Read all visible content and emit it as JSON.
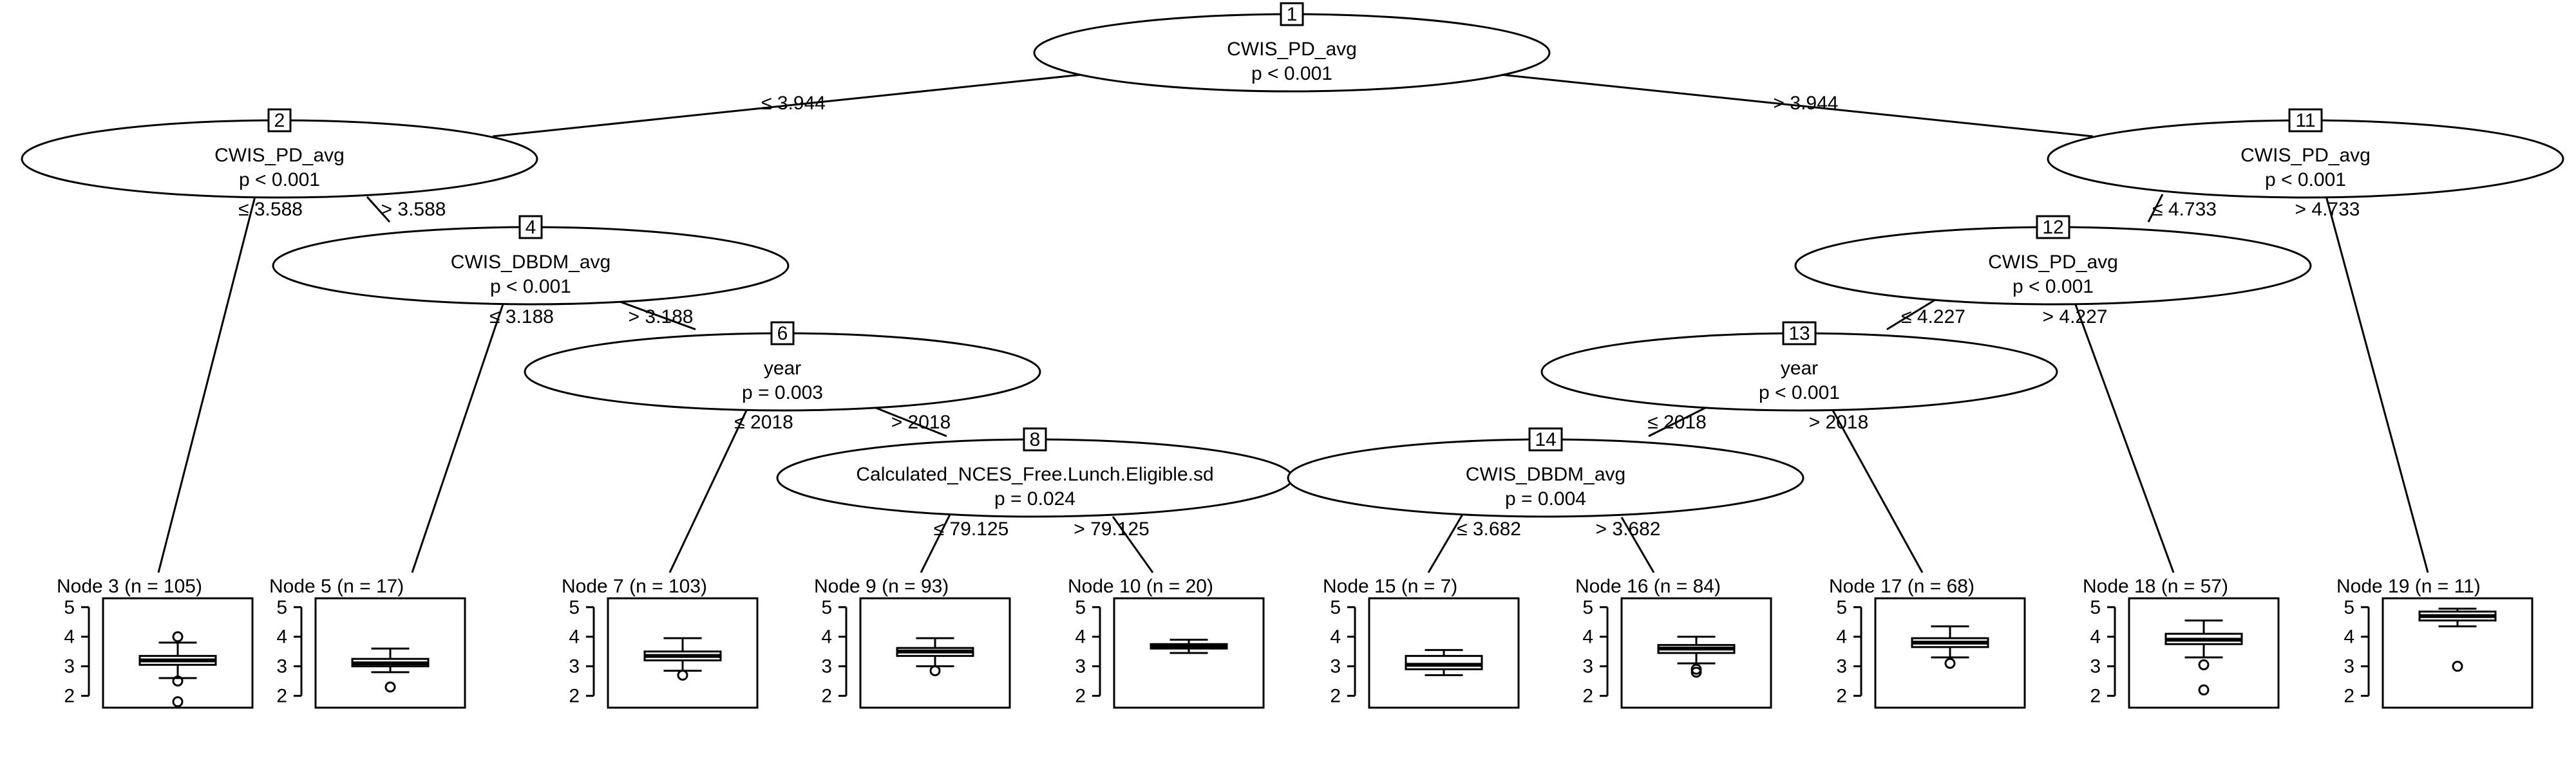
{
  "inner_nodes": [
    {
      "id": "1",
      "variable": "CWIS_PD_avg",
      "p": "p < 0.001"
    },
    {
      "id": "2",
      "variable": "CWIS_PD_avg",
      "p": "p < 0.001"
    },
    {
      "id": "4",
      "variable": "CWIS_DBDM_avg",
      "p": "p < 0.001"
    },
    {
      "id": "6",
      "variable": "year",
      "p": "p = 0.003"
    },
    {
      "id": "8",
      "variable": "Calculated_NCES_Free.Lunch.Eligible.sd",
      "p": "p = 0.024"
    },
    {
      "id": "11",
      "variable": "CWIS_PD_avg",
      "p": "p < 0.001"
    },
    {
      "id": "12",
      "variable": "CWIS_PD_avg",
      "p": "p < 0.001"
    },
    {
      "id": "13",
      "variable": "year",
      "p": "p < 0.001"
    },
    {
      "id": "14",
      "variable": "CWIS_DBDM_avg",
      "p": "p = 0.004"
    }
  ],
  "edge_labels": [
    {
      "from": "1",
      "to": "2",
      "label": "≤ 3.944"
    },
    {
      "from": "1",
      "to": "11",
      "label": "> 3.944"
    },
    {
      "from": "2",
      "to": "3",
      "label": "≤ 3.588"
    },
    {
      "from": "2",
      "to": "4",
      "label": "> 3.588"
    },
    {
      "from": "4",
      "to": "5",
      "label": "≤ 3.188"
    },
    {
      "from": "4",
      "to": "6",
      "label": "> 3.188"
    },
    {
      "from": "6",
      "to": "7",
      "label": "≤ 2018"
    },
    {
      "from": "6",
      "to": "8",
      "label": "> 2018"
    },
    {
      "from": "8",
      "to": "9",
      "label": "≤ 79.125"
    },
    {
      "from": "8",
      "to": "10",
      "label": "> 79.125"
    },
    {
      "from": "11",
      "to": "12",
      "label": "≤ 4.733"
    },
    {
      "from": "11",
      "to": "19",
      "label": "> 4.733"
    },
    {
      "from": "12",
      "to": "13",
      "label": "≤ 4.227"
    },
    {
      "from": "12",
      "to": "18",
      "label": "> 4.227"
    },
    {
      "from": "13",
      "to": "14",
      "label": "≤ 2018"
    },
    {
      "from": "13",
      "to": "17",
      "label": "> 2018"
    },
    {
      "from": "14",
      "to": "15",
      "label": "≤ 3.682"
    },
    {
      "from": "14",
      "to": "16",
      "label": "> 3.682"
    }
  ],
  "leaves": [
    {
      "title": "Node 3 (n = 105)",
      "min": 2.6,
      "q1": 3.05,
      "median": 3.2,
      "q3": 3.35,
      "max": 3.8,
      "outliers": [
        4.0,
        2.5,
        1.8
      ]
    },
    {
      "title": "Node 5 (n = 17)",
      "min": 2.8,
      "q1": 3.0,
      "median": 3.1,
      "q3": 3.25,
      "max": 3.6,
      "outliers": [
        2.3
      ]
    },
    {
      "title": "Node 7 (n = 103)",
      "min": 2.85,
      "q1": 3.2,
      "median": 3.35,
      "q3": 3.5,
      "max": 3.95,
      "outliers": [
        2.7
      ]
    },
    {
      "title": "Node 9 (n = 93)",
      "min": 3.0,
      "q1": 3.35,
      "median": 3.5,
      "q3": 3.62,
      "max": 3.95,
      "outliers": [
        2.85
      ]
    },
    {
      "title": "Node 10 (n = 20)",
      "min": 3.45,
      "q1": 3.6,
      "median": 3.68,
      "q3": 3.75,
      "max": 3.9,
      "outliers": []
    },
    {
      "title": "Node 15 (n = 7)",
      "min": 2.7,
      "q1": 2.9,
      "median": 3.05,
      "q3": 3.35,
      "max": 3.55,
      "outliers": []
    },
    {
      "title": "Node 16 (n = 84)",
      "min": 3.1,
      "q1": 3.45,
      "median": 3.6,
      "q3": 3.72,
      "max": 4.0,
      "outliers": [
        2.9,
        2.8
      ]
    },
    {
      "title": "Node 17 (n = 68)",
      "min": 3.3,
      "q1": 3.65,
      "median": 3.8,
      "q3": 3.95,
      "max": 4.35,
      "outliers": [
        3.1
      ]
    },
    {
      "title": "Node 18 (n = 57)",
      "min": 3.3,
      "q1": 3.75,
      "median": 3.9,
      "q3": 4.1,
      "max": 4.55,
      "outliers": [
        3.05,
        2.2
      ]
    },
    {
      "title": "Node 19 (n = 11)",
      "min": 4.35,
      "q1": 4.55,
      "median": 4.7,
      "q3": 4.85,
      "max": 4.95,
      "outliers": [
        3.0
      ]
    }
  ],
  "leaf_axis": {
    "ticks": [
      "5",
      "4",
      "3",
      "2"
    ],
    "ylim": [
      1.6,
      5.3
    ]
  }
}
